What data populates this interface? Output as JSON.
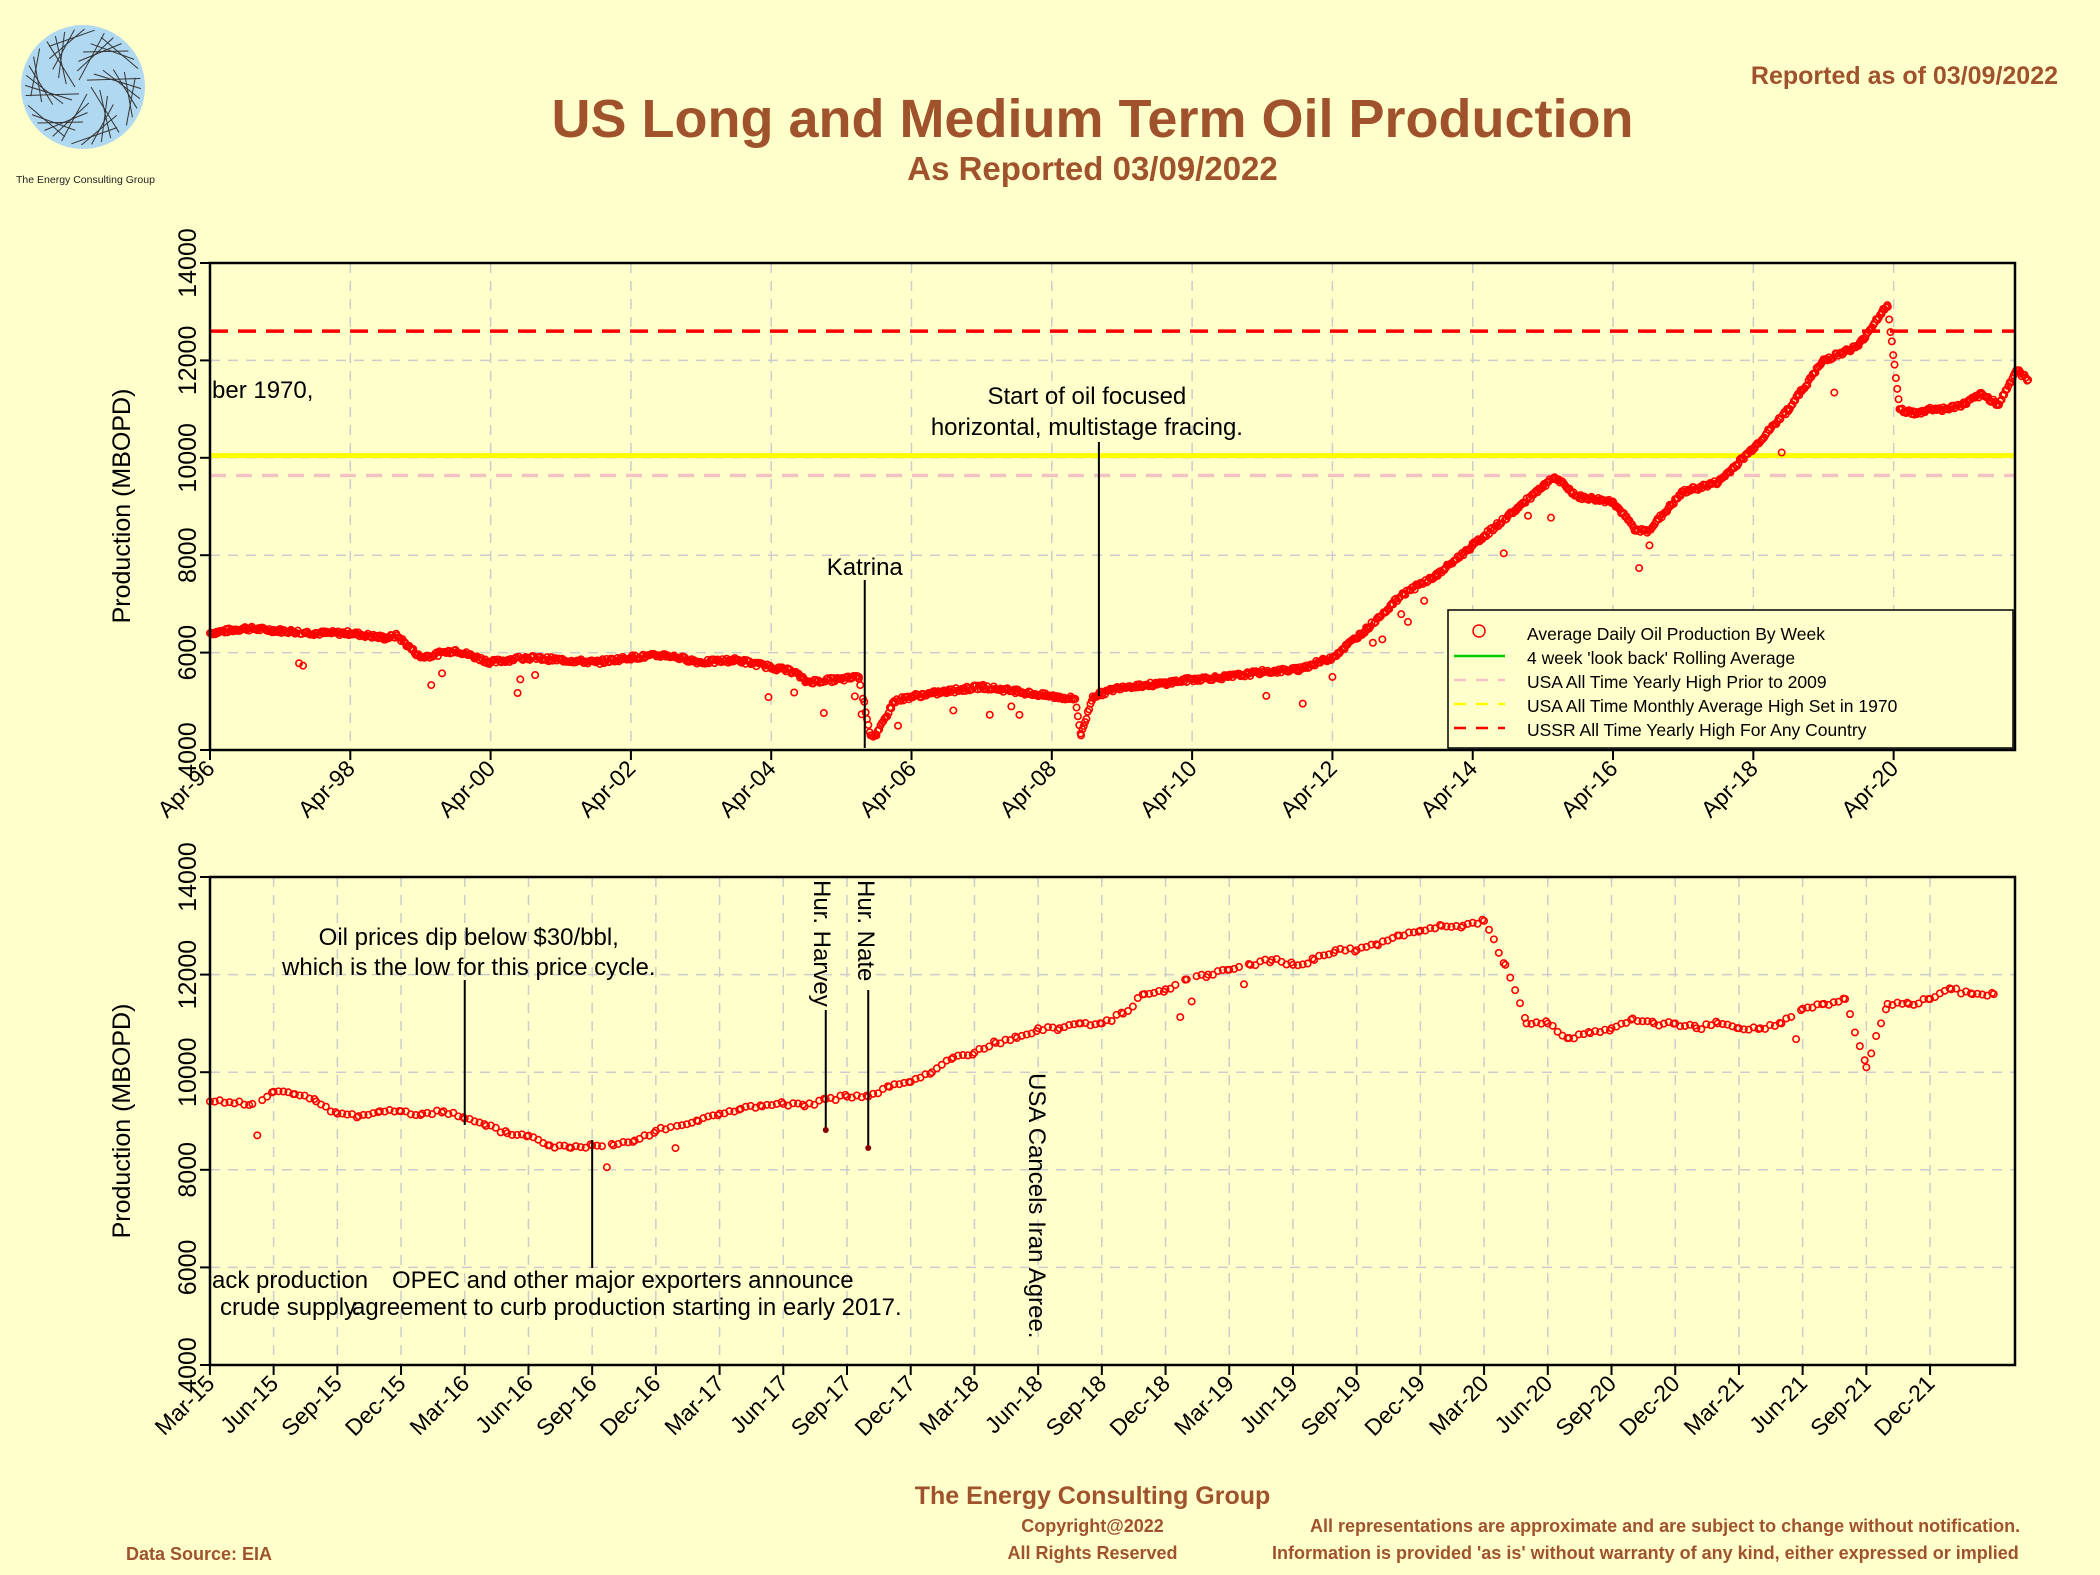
{
  "header": {
    "title": "US Long and Medium Term Oil Production",
    "subtitle": "As Reported 03/09/2022",
    "reported": "Reported as of 03/09/2022",
    "logo_text": "The Energy Consulting Group"
  },
  "footer": {
    "org": "The Energy Consulting Group",
    "copyright": "Copyright@2022",
    "rights": "All Rights Reserved",
    "disclaimer1": "All representations are approximate and are subject to change without notification.",
    "disclaimer2": "Information is provided 'as is' without warranty of any kind, either expressed or implied",
    "data_source": "Data Source: EIA"
  },
  "colors": {
    "background": "#FFFFCC",
    "title": "#A0522D",
    "points": "#FF0000",
    "rolling_avg": "#00CC00",
    "usa_high_2009": "#F4C2C2",
    "usa_high_1970": "#FFFF00",
    "ussr_high": "#FF0000",
    "grid": "#CCCCCC"
  },
  "chart_data": [
    {
      "type": "scatter",
      "ylabel": "Production (MBOPD)",
      "ylim": [
        4000,
        14000
      ],
      "yticks": [
        "4000",
        "6000",
        "8000",
        "10000",
        "12000",
        "14000"
      ],
      "xlim": [
        "1996-04",
        "2022-03"
      ],
      "xticks": [
        "Apr-96",
        "Apr-98",
        "Apr-00",
        "Apr-02",
        "Apr-04",
        "Apr-06",
        "Apr-08",
        "Apr-10",
        "Apr-12",
        "Apr-14",
        "Apr-16",
        "Apr-18",
        "Apr-20"
      ],
      "grid": true,
      "legend_position": "lower-right",
      "legend": [
        {
          "label": "Average Daily Oil Production By Week",
          "style": "circle",
          "color": "#FF0000"
        },
        {
          "label": "4 week 'look back' Rolling Average",
          "style": "solid",
          "color": "#00CC00"
        },
        {
          "label": "USA All Time Yearly High Prior to 2009",
          "style": "dash",
          "color": "#F4C2C2"
        },
        {
          "label": "USA All Time Monthly Average High Set in 1970",
          "style": "dash",
          "color": "#FFFF00"
        },
        {
          "label": "USSR All Time Yearly High For Any Country",
          "style": "dash",
          "color": "#FF0000"
        }
      ],
      "hlines": [
        {
          "name": "USA All Time Monthly Average High Set in 1970",
          "y": 10044,
          "color": "#FFFF00"
        },
        {
          "name": "USA All Time Yearly High Prior to 2009",
          "y": 9637,
          "color": "#F4C2C2"
        },
        {
          "name": "USSR All Time Yearly High For Any Country",
          "y": 12600,
          "color": "#FF0000"
        }
      ],
      "annotations": [
        {
          "lines": [
            "Katrina"
          ],
          "x": "2005-08"
        },
        {
          "lines": [
            "Start of oil focused",
            "horizontal, multistage fracing."
          ],
          "x": "2008-10"
        },
        {
          "lines": [
            "ber 1970,"
          ],
          "x": "1996-04"
        }
      ],
      "series": [
        {
          "name": "Average Daily Oil Production By Week",
          "x": [
            "1996-04",
            "1996-10",
            "1997-04",
            "1997-10",
            "1998-04",
            "1998-10",
            "1998-12",
            "1999-04",
            "1999-10",
            "2000-04",
            "2000-10",
            "2001-04",
            "2001-10",
            "2002-04",
            "2002-10",
            "2003-04",
            "2003-10",
            "2004-04",
            "2004-08",
            "2004-10",
            "2005-04",
            "2005-07",
            "2005-09",
            "2005-10",
            "2006-01",
            "2006-04",
            "2006-10",
            "2007-04",
            "2007-10",
            "2008-04",
            "2008-08",
            "2008-09",
            "2008-11",
            "2009-04",
            "2009-10",
            "2010-04",
            "2010-10",
            "2011-04",
            "2011-10",
            "2012-04",
            "2012-10",
            "2013-04",
            "2013-10",
            "2014-04",
            "2014-10",
            "2015-04",
            "2015-06",
            "2015-10",
            "2016-04",
            "2016-08",
            "2016-10",
            "2017-04",
            "2017-10",
            "2018-04",
            "2018-10",
            "2019-04",
            "2019-10",
            "2020-02",
            "2020-03",
            "2020-05",
            "2020-08",
            "2020-10",
            "2021-01",
            "2021-04",
            "2021-07",
            "2021-10",
            "2022-01",
            "2022-03"
          ],
          "y": [
            6400,
            6500,
            6450,
            6400,
            6400,
            6300,
            6350,
            5900,
            6050,
            5800,
            5900,
            5850,
            5800,
            5900,
            5950,
            5800,
            5850,
            5700,
            5600,
            5400,
            5450,
            5500,
            4300,
            4300,
            5000,
            5100,
            5200,
            5300,
            5200,
            5100,
            5050,
            4300,
            5100,
            5300,
            5350,
            5450,
            5500,
            5600,
            5650,
            5900,
            6500,
            7200,
            7600,
            8200,
            8800,
            9400,
            9600,
            9200,
            9100,
            8500,
            8500,
            9300,
            9500,
            10200,
            11000,
            12000,
            12300,
            13000,
            13100,
            11000,
            10900,
            11000,
            11000,
            11100,
            11300,
            11100,
            11800,
            11600
          ]
        }
      ]
    },
    {
      "type": "scatter",
      "ylabel": "Production (MBOPD)",
      "ylim": [
        4000,
        14000
      ],
      "yticks": [
        "4000",
        "6000",
        "8000",
        "10000",
        "12000",
        "14000"
      ],
      "xlim": [
        "2015-03",
        "2022-03"
      ],
      "xticks": [
        "Mar-15",
        "Jun-15",
        "Sep-15",
        "Dec-15",
        "Mar-16",
        "Jun-16",
        "Sep-16",
        "Dec-16",
        "Mar-17",
        "Jun-17",
        "Sep-17",
        "Dec-17",
        "Mar-18",
        "Jun-18",
        "Sep-18",
        "Dec-18",
        "Mar-19",
        "Jun-19",
        "Sep-19",
        "Dec-19",
        "Mar-20",
        "Jun-20",
        "Sep-20",
        "Dec-20",
        "Mar-21",
        "Jun-21",
        "Sep-21",
        "Dec-21"
      ],
      "grid": true,
      "annotations": [
        {
          "lines": [
            "Oil prices dip below $30/bbl,",
            "which is the low for this price cycle."
          ],
          "x": "2016-03"
        },
        {
          "lines": [
            "OPEC and other major exporters announce",
            "agreement to curb production starting in early 2017."
          ],
          "x": "2016-09"
        },
        {
          "lines": [
            "ack production",
            "crude supply."
          ],
          "x": "2015-03"
        },
        {
          "lines": [
            "Hur. Harvey"
          ],
          "x": "2017-08"
        },
        {
          "lines": [
            "Hur. Nate"
          ],
          "x": "2017-10"
        },
        {
          "lines": [
            "USA Cancels Iran Agree."
          ],
          "x": "2018-05"
        }
      ],
      "series": [
        {
          "name": "Average Daily Oil Production By Week",
          "x": [
            "2015-03",
            "2015-05",
            "2015-06",
            "2015-07",
            "2015-08",
            "2015-09",
            "2015-10",
            "2015-11",
            "2015-12",
            "2016-01",
            "2016-02",
            "2016-03",
            "2016-04",
            "2016-05",
            "2016-06",
            "2016-07",
            "2016-08",
            "2016-09",
            "2016-10",
            "2016-11",
            "2016-12",
            "2017-01",
            "2017-02",
            "2017-03",
            "2017-04",
            "2017-05",
            "2017-06",
            "2017-07",
            "2017-08",
            "2017-09",
            "2017-10",
            "2017-11",
            "2017-12",
            "2018-01",
            "2018-02",
            "2018-03",
            "2018-04",
            "2018-05",
            "2018-06",
            "2018-07",
            "2018-08",
            "2018-09",
            "2018-10",
            "2018-11",
            "2018-12",
            "2019-01",
            "2019-02",
            "2019-03",
            "2019-04",
            "2019-05",
            "2019-06",
            "2019-07",
            "2019-08",
            "2019-09",
            "2019-10",
            "2019-11",
            "2019-12",
            "2020-01",
            "2020-02",
            "2020-03",
            "2020-04",
            "2020-05",
            "2020-06",
            "2020-07",
            "2020-08",
            "2020-09",
            "2020-10",
            "2020-11",
            "2020-12",
            "2021-01",
            "2021-02",
            "2021-03",
            "2021-04",
            "2021-05",
            "2021-06",
            "2021-07",
            "2021-08",
            "2021-09",
            "2021-10",
            "2021-11",
            "2021-12",
            "2022-01",
            "2022-02",
            "2022-03"
          ],
          "y": [
            9400,
            9350,
            9600,
            9550,
            9400,
            9150,
            9100,
            9200,
            9200,
            9150,
            9200,
            9050,
            8900,
            8750,
            8700,
            8500,
            8450,
            8500,
            8500,
            8600,
            8800,
            8900,
            9000,
            9150,
            9250,
            9300,
            9350,
            9300,
            9450,
            9500,
            9500,
            9700,
            9800,
            10000,
            10300,
            10400,
            10600,
            10700,
            10900,
            10900,
            11000,
            11000,
            11200,
            11600,
            11700,
            11900,
            12000,
            12100,
            12200,
            12300,
            12200,
            12300,
            12500,
            12500,
            12600,
            12800,
            12900,
            13000,
            13000,
            13100,
            12200,
            11000,
            11000,
            10700,
            10800,
            10900,
            11100,
            11000,
            11000,
            10900,
            11000,
            10900,
            10900,
            11000,
            11300,
            11400,
            11500,
            10100,
            11400,
            11400,
            11500,
            11700,
            11600,
            11600
          ]
        }
      ]
    }
  ]
}
